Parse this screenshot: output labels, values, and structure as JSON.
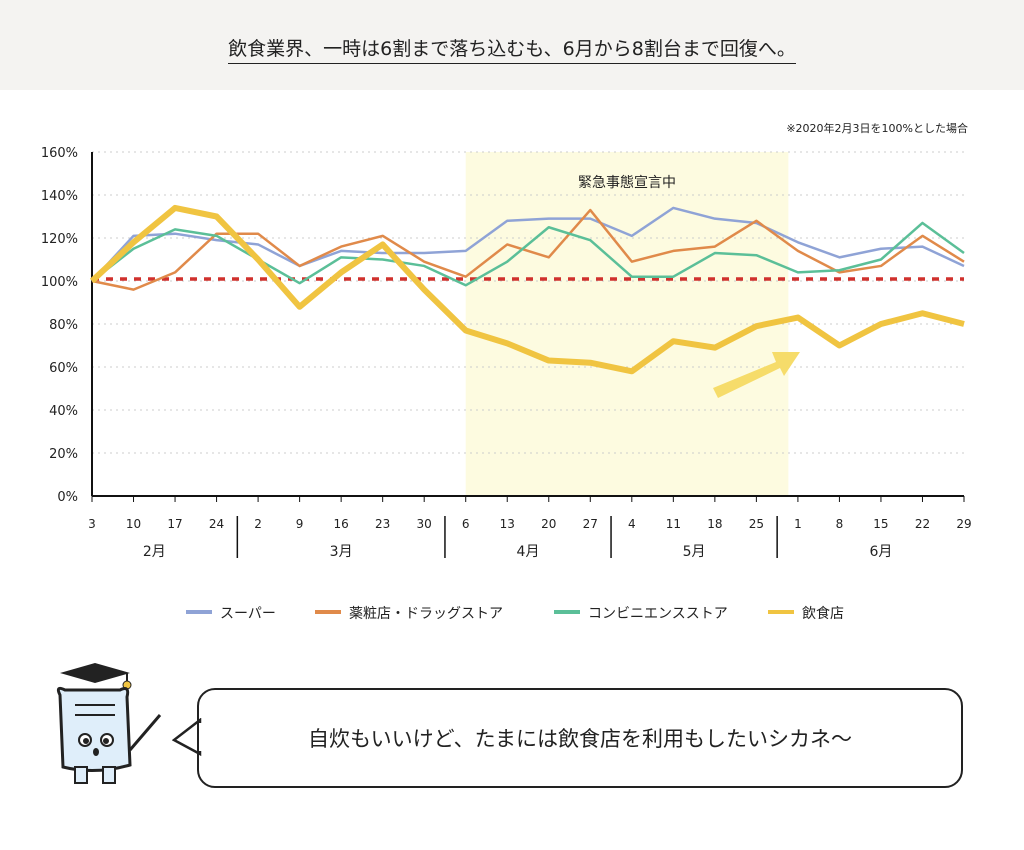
{
  "title": "飲食業界、一時は6割まで落ち込むも、6月から8割台まで回復へ。",
  "note": "※2020年2月3日を100%とした場合",
  "speech": "自炊もいいけど、たまには飲食店を利用もしたいシカネ〜",
  "chart_data": {
    "type": "line",
    "ylim": [
      0,
      160
    ],
    "yticks": [
      "0%",
      "20%",
      "40%",
      "60%",
      "80%",
      "100%",
      "120%",
      "140%",
      "160%"
    ],
    "x": [
      "3",
      "10",
      "17",
      "24",
      "2",
      "9",
      "16",
      "23",
      "30",
      "6",
      "13",
      "20",
      "27",
      "4",
      "11",
      "18",
      "25",
      "1",
      "8",
      "15",
      "22",
      "29"
    ],
    "months": [
      {
        "label": "2月",
        "from": 0,
        "to": 3
      },
      {
        "label": "3月",
        "from": 4,
        "to": 8
      },
      {
        "label": "4月",
        "from": 9,
        "to": 12
      },
      {
        "label": "5月",
        "from": 13,
        "to": 16
      },
      {
        "label": "6月",
        "from": 17,
        "to": 21
      }
    ],
    "shaded_region": {
      "label": "緊急事態宣言中",
      "from": "4月6日",
      "to": "5月25日"
    },
    "reference_line": 100,
    "grid": true,
    "legend_position": "bottom",
    "series": [
      {
        "name": "スーパー",
        "color": "#8fa3d6",
        "values": [
          100,
          121,
          122,
          119,
          117,
          107,
          114,
          113,
          113,
          114,
          128,
          129,
          129,
          121,
          134,
          129,
          127,
          118,
          111,
          115,
          116,
          107
        ]
      },
      {
        "name": "薬粧店・ドラッグストア",
        "color": "#e08a4a",
        "values": [
          100,
          96,
          104,
          122,
          122,
          107,
          116,
          121,
          109,
          102,
          117,
          111,
          133,
          109,
          114,
          116,
          128,
          114,
          104,
          107,
          121,
          109
        ]
      },
      {
        "name": "コンビニエンスストア",
        "color": "#5bbf98",
        "values": [
          100,
          115,
          124,
          121,
          110,
          99,
          111,
          110,
          107,
          98,
          109,
          125,
          119,
          102,
          102,
          113,
          112,
          104,
          105,
          110,
          127,
          113
        ]
      },
      {
        "name": "飲食店",
        "color": "#f0c441",
        "values": [
          100,
          118,
          134,
          130,
          110,
          88,
          104,
          117,
          96,
          77,
          71,
          63,
          62,
          58,
          72,
          69,
          79,
          83,
          70,
          80,
          85,
          80
        ]
      }
    ]
  }
}
